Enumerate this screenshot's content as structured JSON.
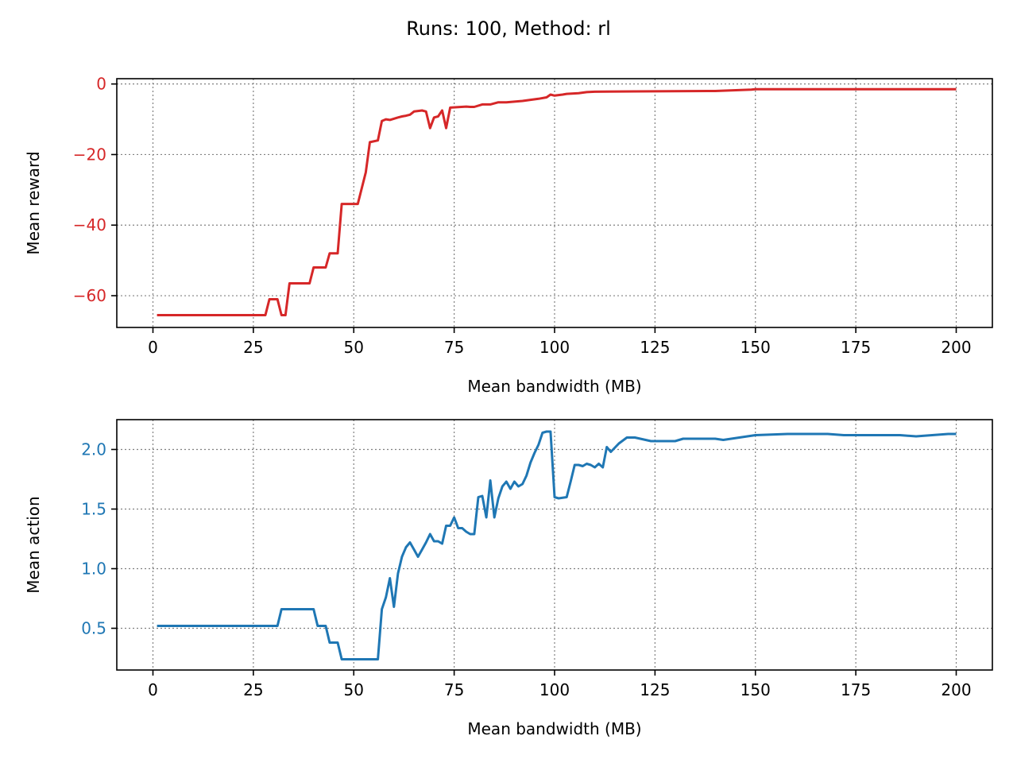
{
  "figure_title": "Runs: 100, Method: rl",
  "chart_data": [
    {
      "type": "line",
      "xlabel": "Mean bandwidth (MB)",
      "ylabel": "Mean reward",
      "xlim": [
        -9,
        209
      ],
      "ylim": [
        -69,
        1.5
      ],
      "xticks": [
        0,
        25,
        50,
        75,
        100,
        125,
        150,
        175,
        200
      ],
      "xtick_labels": [
        "0",
        "25",
        "50",
        "75",
        "100",
        "125",
        "150",
        "175",
        "200"
      ],
      "yticks": [
        -60,
        -40,
        -20,
        0
      ],
      "ytick_labels": [
        "−60",
        "−40",
        "−20",
        "0"
      ],
      "grid": true,
      "color": "#d62728",
      "series": [
        {
          "x": [
            1,
            28,
            29,
            31,
            32,
            33,
            34,
            39,
            40,
            41,
            43,
            44,
            46,
            47,
            51,
            53,
            54,
            56,
            57,
            58,
            59,
            61,
            62,
            63,
            64,
            65,
            67,
            68,
            69,
            70,
            71,
            72,
            73,
            74,
            78,
            79,
            80,
            82,
            83,
            84,
            86,
            88,
            90,
            92,
            94,
            96,
            98,
            99,
            100,
            102,
            103,
            106,
            108,
            110,
            120,
            140,
            149,
            150,
            160,
            180,
            200
          ],
          "y": [
            -65.5,
            -65.5,
            -61,
            -61,
            -65.5,
            -65.5,
            -56.5,
            -56.5,
            -52,
            -52,
            -52,
            -48,
            -48,
            -34,
            -34,
            -25,
            -16.5,
            -16,
            -10.5,
            -10,
            -10.2,
            -9.5,
            -9.2,
            -9,
            -8.7,
            -7.8,
            -7.5,
            -7.8,
            -12.5,
            -9.5,
            -9.2,
            -7.5,
            -12.5,
            -6.7,
            -6.4,
            -6.5,
            -6.5,
            -5.8,
            -5.8,
            -5.8,
            -5.2,
            -5.2,
            -5,
            -4.8,
            -4.5,
            -4.2,
            -3.8,
            -3,
            -3.3,
            -3,
            -2.8,
            -2.6,
            -2.3,
            -2.2,
            -2.1,
            -2,
            -1.6,
            -1.5,
            -1.5,
            -1.5,
            -1.5
          ]
        }
      ]
    },
    {
      "type": "line",
      "xlabel": "Mean bandwidth (MB)",
      "ylabel": "Mean action",
      "xlim": [
        -9,
        209
      ],
      "ylim": [
        0.15,
        2.25
      ],
      "xticks": [
        0,
        25,
        50,
        75,
        100,
        125,
        150,
        175,
        200
      ],
      "xtick_labels": [
        "0",
        "25",
        "50",
        "75",
        "100",
        "125",
        "150",
        "175",
        "200"
      ],
      "yticks": [
        0.5,
        1.0,
        1.5,
        2.0
      ],
      "ytick_labels": [
        "0.5",
        "1.0",
        "1.5",
        "2.0"
      ],
      "grid": true,
      "color": "#1f77b4",
      "series": [
        {
          "x": [
            1,
            31,
            32,
            40,
            41,
            43,
            44,
            46,
            47,
            55,
            56,
            57,
            58,
            59,
            60,
            61,
            62,
            63,
            64,
            65,
            66,
            67,
            68,
            69,
            70,
            71,
            72,
            73,
            74,
            75,
            76,
            77,
            78,
            79,
            80,
            81,
            82,
            83,
            84,
            85,
            86,
            87,
            88,
            89,
            90,
            91,
            92,
            93,
            94,
            95,
            96,
            97,
            98,
            99,
            100,
            101,
            103,
            104,
            105,
            106,
            107,
            108,
            109,
            110,
            111,
            112,
            113,
            114,
            116,
            118,
            120,
            124,
            130,
            132,
            136,
            140,
            142,
            146,
            150,
            158,
            168,
            172,
            176,
            186,
            190,
            194,
            198,
            200
          ],
          "y": [
            0.52,
            0.52,
            0.66,
            0.66,
            0.52,
            0.52,
            0.38,
            0.38,
            0.24,
            0.24,
            0.24,
            0.66,
            0.76,
            0.92,
            0.68,
            0.96,
            1.1,
            1.18,
            1.22,
            1.16,
            1.1,
            1.16,
            1.22,
            1.29,
            1.23,
            1.23,
            1.21,
            1.36,
            1.36,
            1.43,
            1.34,
            1.34,
            1.31,
            1.29,
            1.29,
            1.6,
            1.61,
            1.43,
            1.74,
            1.43,
            1.59,
            1.69,
            1.73,
            1.67,
            1.73,
            1.69,
            1.71,
            1.78,
            1.89,
            1.97,
            2.04,
            2.14,
            2.15,
            2.15,
            1.6,
            1.59,
            1.6,
            1.73,
            1.87,
            1.87,
            1.86,
            1.88,
            1.87,
            1.85,
            1.88,
            1.85,
            2.02,
            1.98,
            2.05,
            2.1,
            2.1,
            2.07,
            2.07,
            2.09,
            2.09,
            2.09,
            2.08,
            2.1,
            2.12,
            2.13,
            2.13,
            2.12,
            2.12,
            2.12,
            2.11,
            2.12,
            2.13,
            2.13
          ]
        }
      ]
    }
  ]
}
